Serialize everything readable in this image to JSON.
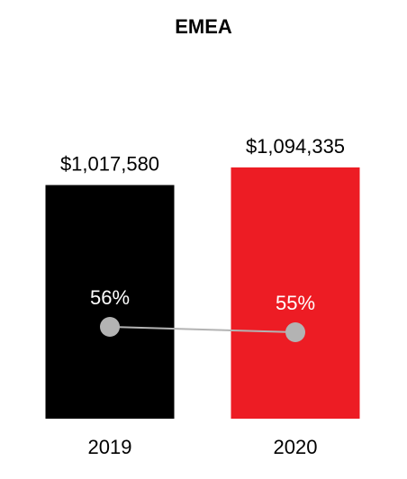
{
  "chart_data": {
    "type": "bar",
    "title": "EMEA",
    "categories": [
      "2019",
      "2020"
    ],
    "series": [
      {
        "type": "bar",
        "colors": [
          "#000000",
          "#ed1c24"
        ],
        "values": [
          1017580,
          1094335
        ],
        "value_labels": [
          "$1,017,580",
          "$1,094,335"
        ]
      },
      {
        "type": "line",
        "axis": "y2",
        "color": "#b3b3b3",
        "values": [
          56,
          55
        ],
        "value_labels": [
          "56%",
          "55%"
        ]
      }
    ],
    "ylim": [
      0,
      1200000
    ],
    "y2lim": [
      39,
      90
    ]
  }
}
